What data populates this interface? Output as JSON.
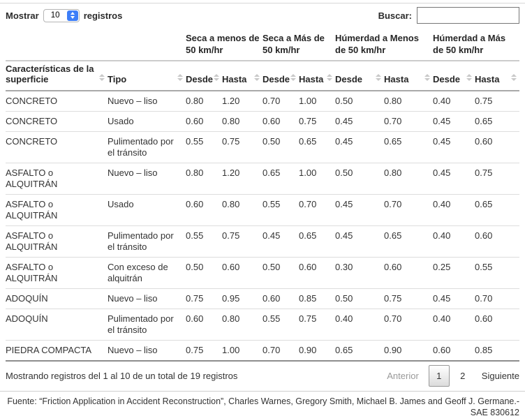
{
  "controls": {
    "show_prefix": "Mostrar",
    "page_size": "10",
    "show_suffix": "registros",
    "search_label": "Buscar:",
    "search_value": ""
  },
  "table": {
    "groups": [
      {
        "label": "Seca a menos de 50 km/hr"
      },
      {
        "label": "Seca a Más de 50 km/hr"
      },
      {
        "label": "Húmerdad a Menos de 50 km/hr"
      },
      {
        "label": "Húmerdad a Más de 50 km/hr"
      }
    ],
    "columns": [
      "Características de la superficie",
      "Tipo",
      "Desde",
      "Hasta",
      "Desde",
      "Hasta",
      "Desde",
      "Hasta",
      "Desde",
      "Hasta"
    ],
    "rows": [
      [
        "CONCRETO",
        "Nuevo – liso",
        "0.80",
        "1.20",
        "0.70",
        "1.00",
        "0.50",
        "0.80",
        "0.40",
        "0.75"
      ],
      [
        "CONCRETO",
        "Usado",
        "0.60",
        "0.80",
        "0.60",
        "0.75",
        "0.45",
        "0.70",
        "0.45",
        "0.65"
      ],
      [
        "CONCRETO",
        "Pulimentado por el tránsito",
        "0.55",
        "0.75",
        "0.50",
        "0.65",
        "0.45",
        "0.65",
        "0.45",
        "0.60"
      ],
      [
        "ASFALTO o ALQUITRÁN",
        "Nuevo – liso",
        "0.80",
        "1.20",
        "0.65",
        "1.00",
        "0.50",
        "0.80",
        "0.45",
        "0.75"
      ],
      [
        "ASFALTO o ALQUITRÁN",
        "Usado",
        "0.60",
        "0.80",
        "0.55",
        "0.70",
        "0.45",
        "0.70",
        "0.40",
        "0.65"
      ],
      [
        "ASFALTO o ALQUITRÁN",
        "Pulimentado por el tránsito",
        "0.55",
        "0.75",
        "0.45",
        "0.65",
        "0.45",
        "0.65",
        "0.40",
        "0.60"
      ],
      [
        "ASFALTO o ALQUITRÁN",
        "Con exceso de alquitrán",
        "0.50",
        "0.60",
        "0.50",
        "0.60",
        "0.30",
        "0.60",
        "0.25",
        "0.55"
      ],
      [
        "ADOQUÍN",
        "Nuevo – liso",
        "0.75",
        "0.95",
        "0.60",
        "0.85",
        "0.50",
        "0.75",
        "0.45",
        "0.70"
      ],
      [
        "ADOQUÍN",
        "Pulimentado por el tránsito",
        "0.60",
        "0.80",
        "0.55",
        "0.75",
        "0.40",
        "0.70",
        "0.40",
        "0.60"
      ],
      [
        "PIEDRA COMPACTA",
        "Nuevo – liso",
        "0.75",
        "1.00",
        "0.70",
        "0.90",
        "0.65",
        "0.90",
        "0.60",
        "0.85"
      ]
    ]
  },
  "footer": {
    "info": "Mostrando registros del 1 al 10 de un total de 19 registros",
    "pagination": {
      "previous": "Anterior",
      "pages": [
        "1",
        "2"
      ],
      "current_page": "1",
      "next": "Siguiente"
    }
  },
  "source_note": "Fuente: “Friction Application in Accident Reconstruction”, Charles Warnes, Gregory Smith, Michael B. James and Geoff J. Germane.- SAE 830612",
  "colors": {
    "accent_blue": "#3d7ef8",
    "row_border": "#dddddd",
    "header_border": "#a9a9a9",
    "text": "#333333"
  }
}
